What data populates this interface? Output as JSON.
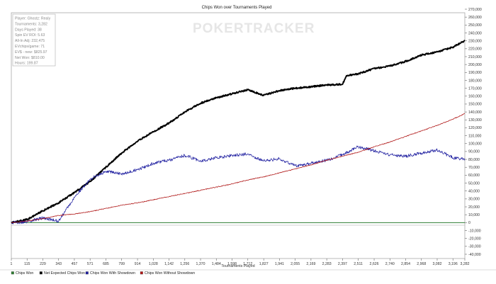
{
  "chart_data": {
    "type": "line",
    "title": "Chips Won over Tournaments Played",
    "xlabel": "Tournaments Played",
    "ylabel": "",
    "xlim": [
      1,
      3282
    ],
    "ylim": [
      -40000,
      270000
    ],
    "x_ticks": [
      "1",
      "115",
      "229",
      "343",
      "457",
      "571",
      "685",
      "799",
      "914",
      "1,028",
      "1,142",
      "1,256",
      "1,370",
      "1,484",
      "1,598",
      "1,712",
      "1,827",
      "1,941",
      "2,055",
      "2,169",
      "2,283",
      "2,397",
      "2,511",
      "2,626",
      "2,740",
      "2,854",
      "2,968",
      "3,082",
      "3,196",
      "3,282"
    ],
    "y_ticks": [
      "-40,000",
      "-30,000",
      "-20,000",
      "-10,000",
      "0",
      "10,000",
      "20,000",
      "30,000",
      "40,000",
      "50,000",
      "60,000",
      "70,000",
      "80,000",
      "90,000",
      "100,000",
      "110,000",
      "120,000",
      "130,000",
      "140,000",
      "150,000",
      "160,000",
      "170,000",
      "180,000",
      "190,000",
      "200,000",
      "210,000",
      "220,000",
      "230,000",
      "240,000",
      "250,000",
      "260,000",
      "270,000"
    ],
    "grid": false,
    "legend_position": "bottom",
    "series": [
      {
        "name": "Chips Won",
        "color": "#2e7d32",
        "x": [
          1,
          3282
        ],
        "y": [
          0,
          0
        ]
      },
      {
        "name": "Net Expected Chips Won",
        "color": "#000000",
        "x": [
          1,
          115,
          229,
          343,
          457,
          571,
          685,
          799,
          914,
          1028,
          1142,
          1256,
          1370,
          1484,
          1598,
          1712,
          1827,
          1941,
          2055,
          2169,
          2283,
          2397,
          2426,
          2511,
          2626,
          2740,
          2854,
          2968,
          3082,
          3196,
          3282
        ],
        "y": [
          0,
          4000,
          15000,
          25000,
          38000,
          52000,
          70000,
          88000,
          103000,
          115000,
          126000,
          140000,
          151000,
          158000,
          163000,
          168000,
          161000,
          167000,
          170000,
          172000,
          174000,
          175000,
          186000,
          188000,
          195000,
          198000,
          204000,
          212000,
          216000,
          222000,
          230000
        ]
      },
      {
        "name": "Chips Won With Showdown",
        "color": "#1f1fa0",
        "x": [
          1,
          115,
          229,
          343,
          457,
          571,
          685,
          799,
          914,
          1028,
          1142,
          1256,
          1370,
          1484,
          1598,
          1712,
          1827,
          1941,
          2055,
          2169,
          2283,
          2397,
          2511,
          2626,
          2740,
          2854,
          2968,
          3082,
          3196,
          3282
        ],
        "y": [
          0,
          1000,
          6000,
          2000,
          32000,
          55000,
          65000,
          62000,
          67000,
          75000,
          79000,
          85000,
          78000,
          82000,
          85000,
          87000,
          78000,
          81000,
          72000,
          75000,
          79000,
          86000,
          96000,
          91000,
          86000,
          84000,
          88000,
          92000,
          82000,
          80000
        ]
      },
      {
        "name": "Chips Won Without Showdown",
        "color": "#b01818",
        "x": [
          1,
          115,
          229,
          343,
          457,
          571,
          685,
          799,
          914,
          1028,
          1142,
          1256,
          1370,
          1484,
          1598,
          1712,
          1827,
          1941,
          2055,
          2169,
          2283,
          2397,
          2511,
          2626,
          2740,
          2854,
          2968,
          3082,
          3196,
          3282
        ],
        "y": [
          0,
          2000,
          5000,
          9000,
          11000,
          14000,
          18000,
          22000,
          25000,
          29000,
          33000,
          37000,
          41000,
          45000,
          49000,
          54000,
          58000,
          63000,
          68000,
          73000,
          79000,
          84000,
          89000,
          96000,
          102000,
          109000,
          116000,
          123000,
          131000,
          138000
        ]
      }
    ],
    "info_box": [
      "Player: Ghostz: Realy",
      "Tournaments: 3,282",
      "Days Played: 38",
      "Spin EV ROI: 5.63",
      "All-In Adj: 232,475",
      "EVchips/game: 71",
      "EV$ - new: $825.97",
      "Net Won: $810.00",
      "Hours: 199.87"
    ],
    "watermark": "POKERTRACKER",
    "legend_entries": [
      "Chips Won",
      "Net Expected Chips Won",
      "Chips Won With Showdown",
      "Chips Won Without Showdown"
    ]
  }
}
